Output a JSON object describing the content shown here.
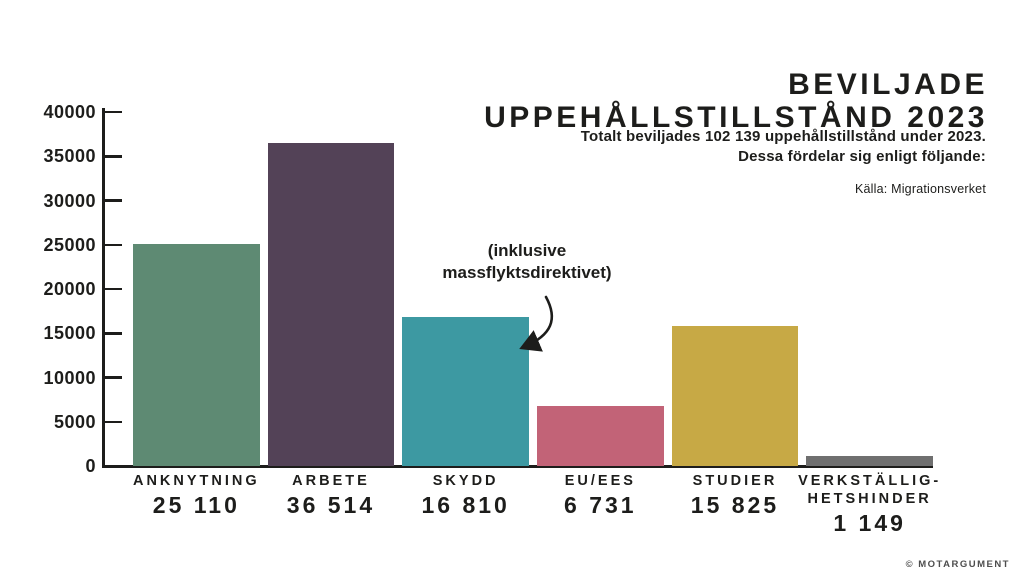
{
  "header": {
    "title": "BEVILJADE\nUPPEHÅLLSTILLSTÅND 2023",
    "subtitle": "Totalt beviljades 102 139 uppehållstillstånd under 2023.\nDessa fördelar sig enligt följande:",
    "source": "Källa: Migrationsverket"
  },
  "annotation": {
    "text": "(inklusive\nmassflyktsdirektivet)"
  },
  "footer": {
    "credit": "© MOTARGUMENT"
  },
  "colors": {
    "text": "#1d1d1b",
    "axis": "#1d1d1b",
    "credit_gray": "#4d4d4d",
    "background": "#ffffff"
  },
  "chart_data": {
    "type": "bar",
    "title": "BEVILJADE UPPEHÅLLSTILLSTÅND 2023",
    "subtitle": "Totalt beviljades 102 139 uppehållstillstånd under 2023. Dessa fördelar sig enligt följande:",
    "source": "Källa: Migrationsverket",
    "total": 102139,
    "categories": [
      "ANKNYTNING",
      "ARBETE",
      "SKYDD",
      "EU/EES",
      "STUDIER",
      "VERKSTÄLLIG-\nHETSHINDER"
    ],
    "values": [
      25110,
      36514,
      16810,
      6731,
      15825,
      1149
    ],
    "value_labels": [
      "25 110",
      "36 514",
      "16 810",
      "6 731",
      "15 825",
      "1 149"
    ],
    "bar_colors": [
      "#5E8A73",
      "#534257",
      "#3D99A2",
      "#C26377",
      "#C7A945",
      "#6F6F6F"
    ],
    "xlabel": "",
    "ylabel": "",
    "ylim": [
      0,
      40000
    ],
    "yticks": [
      0,
      5000,
      10000,
      15000,
      20000,
      25000,
      30000,
      35000,
      40000
    ],
    "ytick_labels": [
      "0",
      "5000",
      "10000",
      "15000",
      "20000",
      "25000",
      "30000",
      "35000",
      "40000"
    ],
    "grid": false,
    "legend": false,
    "annotation": {
      "text": "(inklusive massflyktsdirektivet)",
      "target_category": "SKYDD"
    }
  }
}
